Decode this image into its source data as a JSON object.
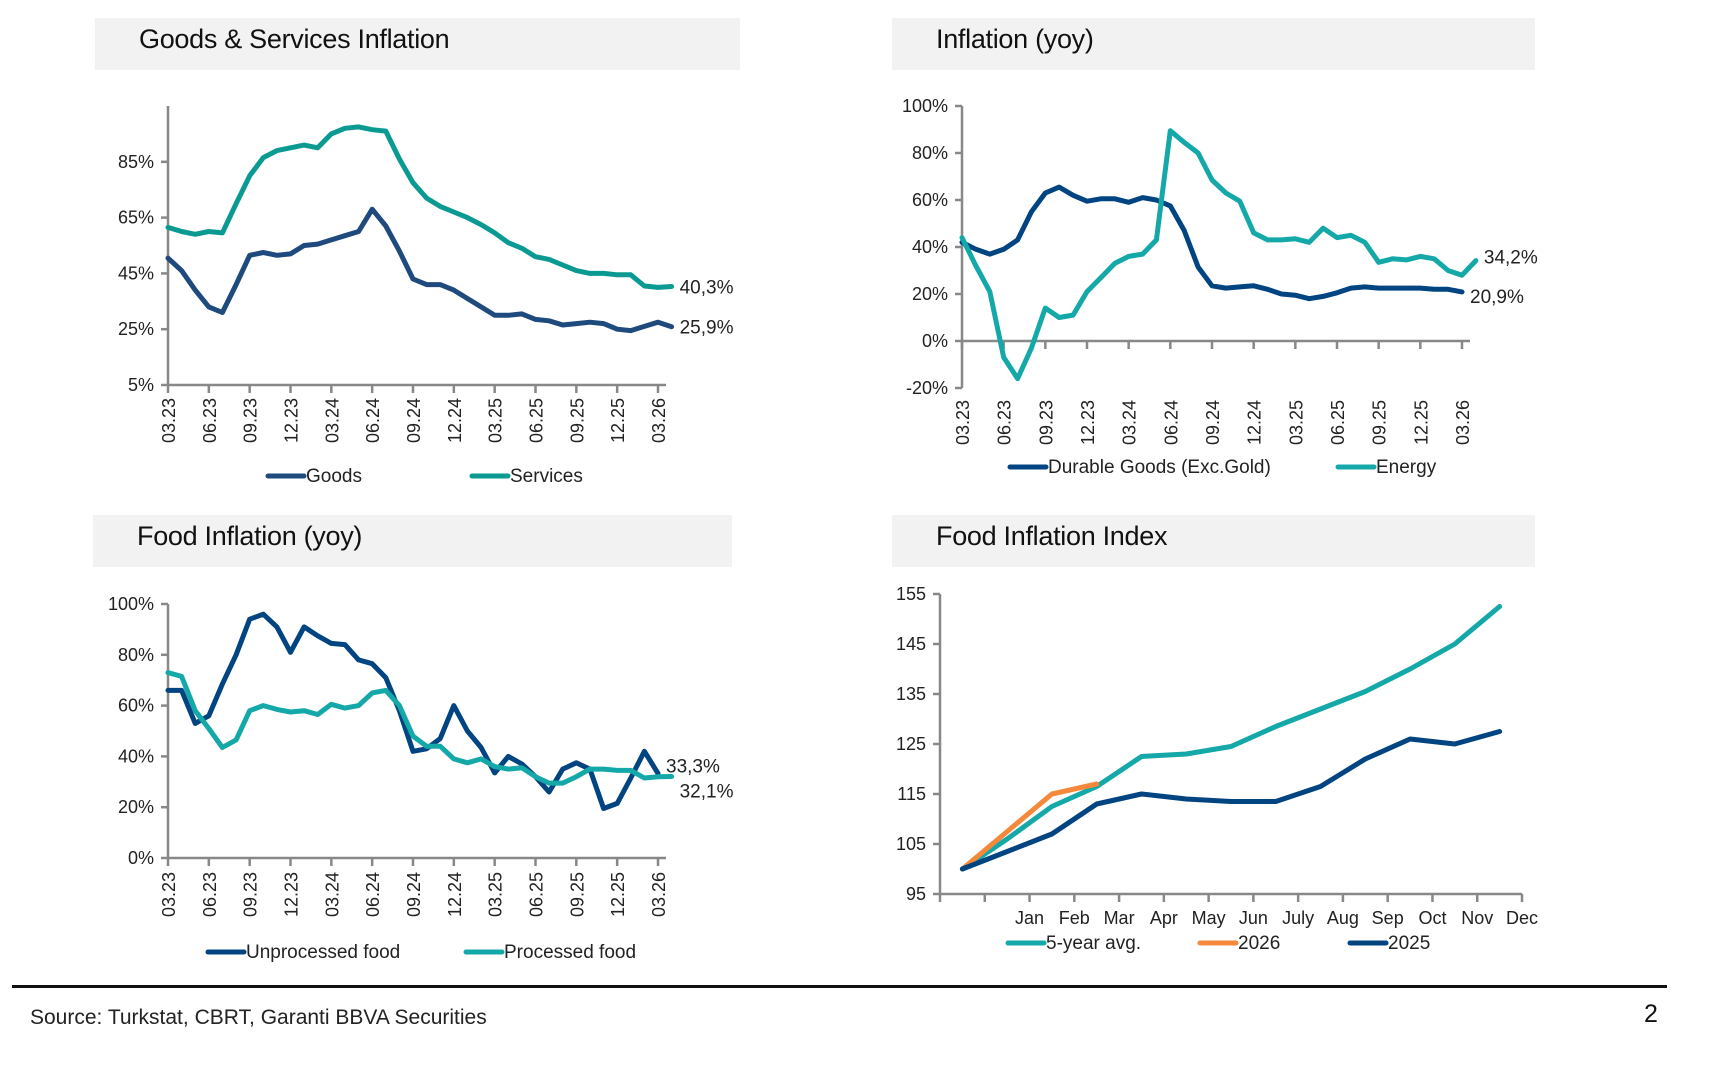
{
  "colors": {
    "navy": "#1f4a7e",
    "navy2": "#004481",
    "teal": "#0a9a92",
    "teal2": "#14a8a8",
    "orange": "#f5883a"
  },
  "footer": {
    "source": "Source: Turkstat, CBRT, Garanti BBVA Securities",
    "page": "2"
  },
  "chart_data": [
    {
      "id": "goods-services",
      "type": "line",
      "title": "Goods & Services Inflation",
      "x_ticks": [
        "03.23",
        "06.23",
        "09.23",
        "12.23",
        "03.24",
        "06.24",
        "09.24",
        "12.24",
        "03.25",
        "06.25",
        "09.25",
        "12.25",
        "03.26"
      ],
      "ylim": [
        5,
        105
      ],
      "y_ticks": [
        5,
        25,
        45,
        65,
        85
      ],
      "y_tick_labels": [
        "5%",
        "25%",
        "45%",
        "65%",
        "85%"
      ],
      "legend": "bottom",
      "series": [
        {
          "name": "Goods",
          "color": "#1f4a7e",
          "end_label": "25,9%",
          "values": [
            50.5,
            46,
            39,
            33,
            31,
            41,
            51.5,
            52.5,
            51.5,
            52,
            55,
            55.5,
            57,
            58.5,
            60,
            68,
            62,
            53,
            43,
            41,
            41,
            39,
            36,
            33,
            30,
            30,
            30.5,
            28.5,
            28,
            26.5,
            27,
            27.5,
            27,
            25,
            24.5,
            26,
            27.5,
            25.9
          ]
        },
        {
          "name": "Services",
          "color": "#0a9a92",
          "end_label": "40,3%",
          "values": [
            61.5,
            60,
            59,
            60,
            59.5,
            70,
            80,
            86.5,
            89,
            90,
            91,
            90,
            95,
            97,
            97.5,
            96.5,
            96,
            86,
            77.5,
            72,
            69,
            67,
            65,
            62.5,
            59.5,
            56,
            54,
            51,
            50,
            48,
            46,
            45,
            45,
            44.5,
            44.5,
            40.5,
            40,
            40.3
          ]
        }
      ]
    },
    {
      "id": "inflation-yoy",
      "type": "line",
      "title": "Inflation (yoy)",
      "x_ticks": [
        "03.23",
        "06.23",
        "09.23",
        "12.23",
        "03.24",
        "06.24",
        "09.24",
        "12.24",
        "03.25",
        "06.25",
        "09.25",
        "12.25",
        "03.26"
      ],
      "ylim": [
        -20,
        100
      ],
      "y_ticks": [
        -20,
        0,
        20,
        40,
        60,
        80,
        100
      ],
      "y_tick_labels": [
        "-20%",
        "0%",
        "20%",
        "40%",
        "60%",
        "80%",
        "100%"
      ],
      "legend": "bottom",
      "series": [
        {
          "name": "Durable Goods (Exc.Gold)",
          "color": "#004481",
          "end_label": "20,9%",
          "values": [
            42,
            39,
            37,
            39,
            43,
            55,
            63,
            65.5,
            62,
            59.5,
            60.5,
            60.5,
            59,
            61,
            60,
            57.5,
            47,
            31.5,
            23.5,
            22.5,
            23,
            23.5,
            22,
            20,
            19.5,
            18,
            19,
            20.5,
            22.5,
            23,
            22.5,
            22.5,
            22.5,
            22.5,
            22,
            22,
            20.9
          ]
        },
        {
          "name": "Energy",
          "color": "#14a8a8",
          "end_label": "34,2%",
          "values": [
            44,
            32,
            21,
            -7,
            -16,
            -3,
            14,
            10,
            11,
            21,
            27,
            33,
            36,
            37,
            43,
            89.5,
            84.5,
            80,
            68.5,
            63,
            59.5,
            46,
            43,
            43,
            43.5,
            42,
            48,
            44,
            45,
            42,
            33.5,
            35,
            34.5,
            36,
            35,
            30,
            28,
            34.2
          ]
        }
      ]
    },
    {
      "id": "food-inflation-yoy",
      "type": "line",
      "title": "Food Inflation (yoy)",
      "x_ticks": [
        "03.23",
        "06.23",
        "09.23",
        "12.23",
        "03.24",
        "06.24",
        "09.24",
        "12.24",
        "03.25",
        "06.25",
        "09.25",
        "12.25",
        "03.26"
      ],
      "ylim": [
        0,
        100
      ],
      "y_ticks": [
        0,
        20,
        40,
        60,
        80,
        100
      ],
      "y_tick_labels": [
        "0%",
        "20%",
        "40%",
        "60%",
        "80%",
        "100%"
      ],
      "legend": "bottom",
      "series": [
        {
          "name": "Unprocessed food",
          "color": "#004481",
          "end_label": "33,3%",
          "values": [
            66,
            66,
            53,
            56,
            68.5,
            80,
            94,
            96,
            91,
            81,
            91,
            87.5,
            84.5,
            84,
            78,
            76.5,
            71,
            58,
            42,
            43,
            47,
            60,
            50,
            43.5,
            33.5,
            40,
            37,
            32,
            26,
            35,
            37.5,
            35,
            19.5,
            21.5,
            31.5,
            42,
            33.3
          ]
        },
        {
          "name": "Processed food",
          "color": "#14a8a8",
          "end_label": "32,1%",
          "values": [
            73,
            71.5,
            58,
            51,
            43.5,
            46.5,
            58,
            60,
            58.5,
            57.5,
            58,
            56.5,
            60.5,
            59,
            60,
            65,
            66,
            60,
            48,
            44,
            44,
            39,
            37.5,
            39,
            36,
            35,
            35.5,
            32,
            29.5,
            29.5,
            32,
            35,
            35,
            34.5,
            34.5,
            31.5,
            32,
            32.1
          ]
        }
      ]
    },
    {
      "id": "food-inflation-index",
      "type": "line",
      "title": "Food Inflation Index",
      "x_ticks": [
        "",
        "Jan",
        "Feb",
        "Mar",
        "Apr",
        "May",
        "Jun",
        "July",
        "Aug",
        "Sep",
        "Oct",
        "Nov",
        "Dec"
      ],
      "ylim": [
        95,
        155
      ],
      "y_ticks": [
        95,
        105,
        115,
        125,
        135,
        145,
        155
      ],
      "y_tick_labels": [
        "95",
        "105",
        "115",
        "125",
        "135",
        "145",
        "155"
      ],
      "legend": "bottom",
      "series": [
        {
          "name": "5-year avg.",
          "color": "#14a8a8",
          "values": [
            100,
            106,
            112.5,
            116.5,
            122.5,
            123,
            124.5,
            128.5,
            132,
            135.5,
            140,
            145,
            152.5
          ]
        },
        {
          "name": "2026",
          "color": "#f5883a",
          "values": [
            100,
            107.5,
            115,
            117
          ]
        },
        {
          "name": "2025",
          "color": "#004481",
          "values": [
            100,
            103.5,
            107,
            113,
            115,
            114,
            113.5,
            113.5,
            116.5,
            122,
            126,
            125,
            127.5
          ]
        }
      ]
    }
  ]
}
